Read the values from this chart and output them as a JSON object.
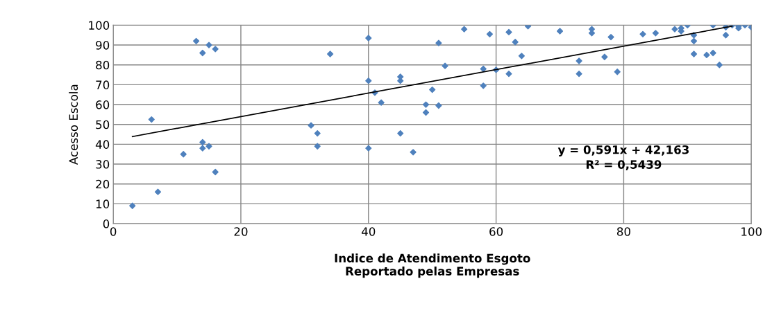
{
  "chart_data": {
    "type": "scatter",
    "xlabel": "Indice de Atendimento Esgoto\nReportado pelas Empresas",
    "ylabel": "Acesso Escola",
    "xlim": [
      0,
      100
    ],
    "xticks": [
      0,
      20,
      40,
      60,
      80,
      100
    ],
    "ylim": [
      0,
      100
    ],
    "yticks": [
      0,
      10,
      20,
      30,
      40,
      50,
      60,
      70,
      80,
      90,
      100
    ],
    "grid": true,
    "marker": "diamond",
    "legend": false,
    "annotations": [
      "y = 0,591x + 42,163\nR² = 0,5439"
    ],
    "series": [
      {
        "color": "#4f81bd",
        "x": [
          3,
          7,
          6,
          11,
          13,
          14,
          14,
          14,
          15,
          15,
          16,
          16,
          31,
          32,
          32,
          34,
          40,
          40,
          40,
          41,
          42,
          45,
          45,
          45,
          47,
          49,
          49,
          50,
          51,
          51,
          52,
          55,
          58,
          58,
          59,
          60,
          62,
          62,
          63,
          64,
          65,
          70,
          73,
          73,
          75,
          75,
          77,
          78,
          79,
          83,
          85,
          88,
          89,
          89,
          90,
          91,
          91,
          91,
          93,
          94,
          94,
          95,
          96,
          96,
          97,
          98,
          98,
          99,
          100
        ],
        "values": [
          9,
          16,
          52.5,
          35,
          92,
          86,
          41,
          38,
          39,
          90,
          88,
          26,
          49.5,
          45.5,
          39,
          85.5,
          93.5,
          72,
          38,
          66,
          61,
          74,
          72,
          45.5,
          36,
          60,
          56,
          67.5,
          91,
          59.5,
          79.5,
          98,
          78,
          69.5,
          95.5,
          77.5,
          96.5,
          75.5,
          91.5,
          84.5,
          99.5,
          97,
          82,
          75.5,
          98,
          96,
          84,
          94,
          76.5,
          95.5,
          96,
          98,
          98.5,
          97,
          100,
          95,
          92,
          85.5,
          85,
          86,
          100,
          80,
          99,
          95,
          100,
          99.5,
          98.5,
          100,
          99
        ]
      },
      {
        "type": "line",
        "color": "#000000",
        "line_style": "solid",
        "marker": "none",
        "x": [
          3,
          97
        ],
        "values": [
          43.9,
          99.5
        ]
      }
    ]
  }
}
